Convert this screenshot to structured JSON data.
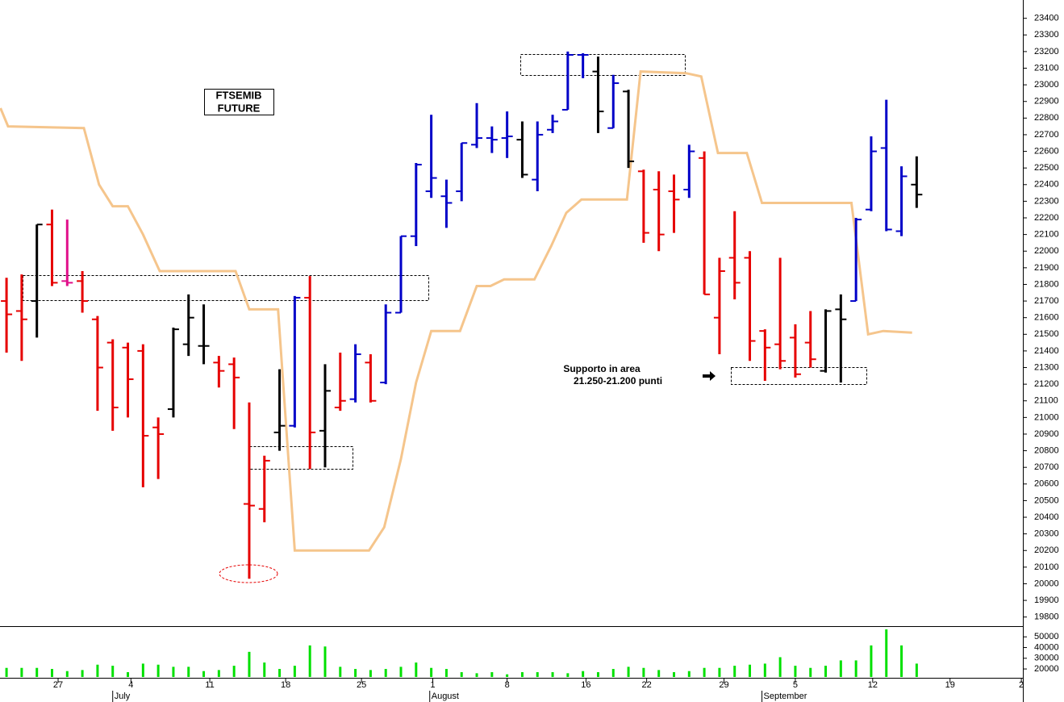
{
  "chart_data": {
    "type": "ohlc",
    "title_lines": [
      "FTSEMIB",
      "FUTURE"
    ],
    "annotation_lines": [
      "Supporto in area",
      "21.250-21.200 punti"
    ],
    "x": [
      0,
      1,
      2,
      3,
      4,
      5,
      6,
      7,
      8,
      9,
      10,
      11,
      12,
      13,
      14,
      15,
      16,
      17,
      18,
      19,
      20,
      21,
      22,
      23,
      24,
      25,
      26,
      27,
      28,
      29,
      30,
      31,
      32,
      33,
      34,
      35,
      36,
      37,
      38,
      39,
      40,
      41,
      42,
      43,
      44,
      45,
      46,
      47,
      48,
      49,
      50,
      51,
      52,
      53,
      54,
      55,
      56,
      57,
      58,
      59,
      60
    ],
    "high": [
      21840,
      21860,
      22160,
      22250,
      22190,
      21880,
      21610,
      21470,
      21450,
      21440,
      21000,
      21540,
      21740,
      21680,
      21370,
      21360,
      21090,
      20770,
      21290,
      21730,
      21850,
      21320,
      21390,
      21440,
      21380,
      21680,
      22090,
      22530,
      22820,
      22430,
      22650,
      22890,
      22750,
      22840,
      22780,
      22780,
      22820,
      23200,
      23190,
      23170,
      23060,
      22970,
      22490,
      22480,
      22460,
      22640,
      22600,
      21960,
      22240,
      22000,
      21530,
      21960,
      21560,
      21640,
      21650,
      21740,
      22200,
      22690,
      22910,
      22510,
      22570
    ],
    "low": [
      21390,
      21340,
      21480,
      21790,
      21790,
      21630,
      21040,
      20920,
      21000,
      20580,
      20630,
      21000,
      21370,
      21320,
      21180,
      20930,
      20030,
      20370,
      20800,
      20940,
      20690,
      20700,
      21040,
      21090,
      21090,
      21200,
      21630,
      22030,
      22320,
      22140,
      22300,
      22620,
      22590,
      22560,
      22440,
      22360,
      22710,
      22850,
      23040,
      22710,
      22740,
      22500,
      22050,
      22000,
      22110,
      22320,
      21740,
      21380,
      21710,
      21340,
      21220,
      21290,
      21240,
      21300,
      21270,
      21210,
      21700,
      22240,
      22120,
      22090,
      22260
    ],
    "open": [
      21700,
      21640,
      21700,
      22160,
      21820,
      21820,
      21590,
      21450,
      21420,
      21400,
      20940,
      21050,
      21440,
      21430,
      21330,
      21320,
      20480,
      20450,
      20910,
      20950,
      21720,
      20920,
      21060,
      21110,
      21330,
      21210,
      21630,
      22090,
      22360,
      22330,
      22360,
      22640,
      22680,
      22680,
      22670,
      22430,
      22730,
      22850,
      23180,
      23080,
      22740,
      22960,
      22480,
      22370,
      22360,
      22370,
      22560,
      21600,
      21960,
      21960,
      21520,
      21440,
      21480,
      21450,
      21280,
      21650,
      21700,
      22250,
      22620,
      22120,
      22400
    ],
    "close": [
      21620,
      21590,
      22160,
      21810,
      21810,
      21700,
      21300,
      21060,
      21230,
      20890,
      20900,
      21530,
      21600,
      21430,
      21280,
      21240,
      20470,
      20740,
      20950,
      21720,
      20910,
      21160,
      21100,
      21380,
      21100,
      21630,
      22090,
      22520,
      22440,
      22290,
      22650,
      22680,
      22670,
      22690,
      22460,
      22700,
      22780,
      23180,
      23180,
      22840,
      23010,
      22540,
      22110,
      22100,
      22310,
      22600,
      21740,
      21880,
      21810,
      21460,
      21420,
      21340,
      21260,
      21350,
      21640,
      21590,
      22190,
      22600,
      22130,
      22450,
      22340
    ],
    "bar_colors": [
      "#e60000",
      "#e60000",
      "#000000",
      "#e60000",
      "#e0108a",
      "#e60000",
      "#e60000",
      "#e60000",
      "#e60000",
      "#e60000",
      "#e60000",
      "#000000",
      "#000000",
      "#000000",
      "#e60000",
      "#e60000",
      "#e60000",
      "#e60000",
      "#000000",
      "#0000c8",
      "#e60000",
      "#000000",
      "#e60000",
      "#0000c8",
      "#e60000",
      "#0000c8",
      "#0000c8",
      "#0000c8",
      "#0000c8",
      "#0000c8",
      "#0000c8",
      "#0000c8",
      "#0000c8",
      "#0000c8",
      "#000000",
      "#0000c8",
      "#0000c8",
      "#0000c8",
      "#0000c8",
      "#000000",
      "#0000c8",
      "#000000",
      "#e60000",
      "#e60000",
      "#e60000",
      "#0000c8",
      "#e60000",
      "#e60000",
      "#e60000",
      "#e60000",
      "#e60000",
      "#e60000",
      "#e60000",
      "#e60000",
      "#000000",
      "#000000",
      "#0000c8",
      "#0000c8",
      "#0000c8",
      "#0000c8",
      "#000000"
    ],
    "xlim": [
      -0.43,
      67.0
    ],
    "ylim": [
      19750,
      23510
    ],
    "yticks": [
      19800,
      19900,
      20000,
      20100,
      20200,
      20300,
      20400,
      20500,
      20600,
      20700,
      20800,
      20900,
      21000,
      21100,
      21200,
      21300,
      21400,
      21500,
      21600,
      21700,
      21800,
      21900,
      22000,
      22100,
      22200,
      22300,
      22400,
      22500,
      22600,
      22700,
      22800,
      22900,
      23000,
      23100,
      23200,
      23300,
      23400
    ],
    "xticks": [
      {
        "value": 3.4,
        "label": "27"
      },
      {
        "value": 8.2,
        "label": "4"
      },
      {
        "value": 13.4,
        "label": "11"
      },
      {
        "value": 18.4,
        "label": "18"
      },
      {
        "value": 23.4,
        "label": "25"
      },
      {
        "value": 28.1,
        "label": "1"
      },
      {
        "value": 33.0,
        "label": "8"
      },
      {
        "value": 38.2,
        "label": "16"
      },
      {
        "value": 42.2,
        "label": "22"
      },
      {
        "value": 47.3,
        "label": "29"
      },
      {
        "value": 52.0,
        "label": "5"
      },
      {
        "value": 57.1,
        "label": "12"
      },
      {
        "value": 62.2,
        "label": "19"
      },
      {
        "value": 66.9,
        "label": "2"
      }
    ],
    "month_ticks": [
      {
        "value": 7.0,
        "label": "July"
      },
      {
        "value": 27.9,
        "label": "August"
      },
      {
        "value": 49.8,
        "label": "September"
      }
    ],
    "line": {
      "color": "#f5c58c",
      "x": [
        -0.4,
        0.1,
        5.1,
        6.1,
        7.0,
        8.0,
        9.0,
        10.1,
        15.1,
        16.0,
        17.9,
        19.0,
        23.9,
        24.9,
        26.0,
        27.0,
        28.0,
        29.9,
        31.0,
        31.9,
        32.8,
        34.8,
        35.9,
        36.9,
        37.9,
        40.9,
        41.8,
        44.8,
        45.8,
        46.9,
        48.8,
        49.8,
        55.7,
        56.8,
        57.8,
        59.7
      ],
      "values": [
        22860,
        22750,
        22740,
        22400,
        22270,
        22270,
        22100,
        21880,
        21880,
        21650,
        21650,
        20200,
        20200,
        20340,
        20750,
        21210,
        21520,
        21520,
        21790,
        21790,
        21830,
        21830,
        22030,
        22230,
        22310,
        22310,
        23080,
        23070,
        23050,
        22590,
        22590,
        22290,
        22290,
        21500,
        21520,
        21510
      ]
    },
    "volume": {
      "color": "#00e000",
      "values": [
        21000,
        21000,
        21000,
        20000,
        18000,
        19000,
        24000,
        23000,
        17000,
        25000,
        24000,
        22000,
        22000,
        18000,
        19000,
        23000,
        36000,
        26000,
        20000,
        23000,
        42000,
        41000,
        22000,
        20000,
        19000,
        20000,
        22000,
        26000,
        21000,
        20000,
        17000,
        16000,
        17000,
        15000,
        17000,
        17000,
        17000,
        16000,
        18000,
        17000,
        20000,
        22000,
        21000,
        19000,
        17000,
        18000,
        21000,
        21000,
        23000,
        24000,
        25000,
        31000,
        23000,
        21000,
        23000,
        28000,
        28000,
        42000,
        57000,
        42000,
        25000
      ],
      "ylim": [
        12500,
        60000
      ],
      "yticks": [
        20000,
        30000,
        40000,
        50000
      ]
    }
  }
}
